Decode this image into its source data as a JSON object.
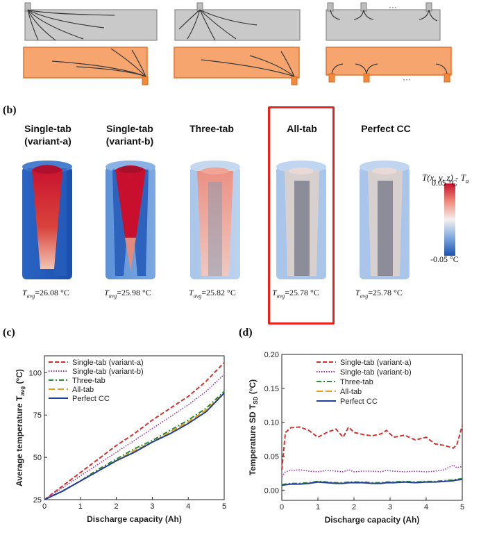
{
  "panel_b": {
    "letter": "(b)",
    "cells": [
      {
        "label_line1": "Single-tab",
        "label_line2": "(variant-a)",
        "tavg": "=26.08 °C",
        "pattern": "red"
      },
      {
        "label_line1": "Single-tab",
        "label_line2": "(variant-b)",
        "tavg": "=25.98 °C",
        "pattern": "wedge"
      },
      {
        "label_line1": "Three-tab",
        "label_line2": "",
        "tavg": "=25.82 °C",
        "pattern": "light-red"
      },
      {
        "label_line1": "All-tab",
        "label_line2": "",
        "tavg": "=25.78 °C",
        "pattern": "uniform"
      },
      {
        "label_line1": "Perfect CC",
        "label_line2": "",
        "tavg": "=25.78 °C",
        "pattern": "uniform"
      }
    ],
    "tavg_symbol": "T",
    "tavg_sub": "avg",
    "colorbar_title": "T(x, y, z) - T",
    "colorbar_title_sub": "a",
    "colorbar_max": "0.05 °C",
    "colorbar_min": "-0.05 °C",
    "highlight_color": "#e8231c"
  },
  "panel_c": {
    "letter": "(c)"
  },
  "panel_d": {
    "letter": "(d)"
  },
  "chart_data": [
    {
      "type": "line",
      "ylabel": "Average temperature T",
      "ylabel_sub": "avg",
      "ylabel_unit": " (°C)",
      "xlabel": "Discharge capacity (Ah)",
      "xlim": [
        0,
        5
      ],
      "ylim": [
        25,
        110
      ],
      "xticks": [
        0,
        1,
        2,
        3,
        4,
        5
      ],
      "yticks": [
        25,
        50,
        75,
        100
      ],
      "legend_position": "top-left",
      "x": [
        0,
        0.5,
        1,
        1.5,
        2,
        2.5,
        3,
        3.5,
        4,
        4.5,
        5
      ],
      "series": [
        {
          "name": "Single-tab (variant-a)",
          "color": "#d0312d",
          "dash": "dash",
          "values": [
            25,
            33,
            41,
            49,
            57,
            64,
            72,
            79,
            86,
            95,
            106
          ]
        },
        {
          "name": "Single-tab (variant-b)",
          "color": "#9b30a8",
          "dash": "dot",
          "values": [
            25,
            32,
            39,
            46,
            53,
            60,
            67,
            74,
            81,
            89,
            99
          ]
        },
        {
          "name": "Three-tab",
          "color": "#2e8b3a",
          "dash": "dashdot",
          "values": [
            25,
            30,
            36,
            43,
            49,
            55,
            60,
            66,
            72,
            79,
            89
          ]
        },
        {
          "name": "All-tab",
          "color": "#e6a11c",
          "dash": "longdash",
          "values": [
            25,
            30,
            36,
            42,
            48,
            54,
            59,
            65,
            71,
            78,
            88
          ]
        },
        {
          "name": "Perfect CC",
          "color": "#1f3f9c",
          "dash": "solid",
          "values": [
            25,
            30,
            36,
            42,
            48,
            53,
            59,
            64,
            70,
            77,
            88
          ]
        }
      ]
    },
    {
      "type": "line",
      "ylabel": "Temperature SD T",
      "ylabel_sub": "SD",
      "ylabel_unit": " (°C)",
      "xlabel": "Discharge capacity (Ah)",
      "xlim": [
        0,
        5
      ],
      "ylim": [
        -0.015,
        0.2
      ],
      "xticks": [
        0,
        1,
        2,
        3,
        4,
        5
      ],
      "yticks": [
        0.0,
        0.05,
        0.1,
        0.15,
        0.2
      ],
      "ytick_labels": [
        "0.00",
        "0.05",
        "0.10",
        "0.15",
        "0.20"
      ],
      "legend_position": "top-center",
      "x": [
        0,
        0.1,
        0.25,
        0.5,
        0.75,
        1,
        1.25,
        1.5,
        1.7,
        1.85,
        2,
        2.25,
        2.5,
        2.75,
        2.9,
        3.1,
        3.4,
        3.7,
        4,
        4.25,
        4.5,
        4.75,
        4.85,
        5
      ],
      "series": [
        {
          "name": "Single-tab (variant-a)",
          "color": "#d0312d",
          "dash": "dash",
          "values": [
            0.03,
            0.085,
            0.092,
            0.093,
            0.088,
            0.078,
            0.085,
            0.09,
            0.078,
            0.093,
            0.085,
            0.082,
            0.08,
            0.083,
            0.088,
            0.078,
            0.081,
            0.074,
            0.078,
            0.068,
            0.066,
            0.062,
            0.067,
            0.095
          ]
        },
        {
          "name": "Single-tab (variant-b)",
          "color": "#9b30a8",
          "dash": "dot",
          "values": [
            0.02,
            0.027,
            0.029,
            0.03,
            0.028,
            0.027,
            0.029,
            0.028,
            0.027,
            0.03,
            0.027,
            0.028,
            0.028,
            0.027,
            0.029,
            0.028,
            0.027,
            0.028,
            0.027,
            0.028,
            0.03,
            0.037,
            0.033,
            0.035
          ]
        },
        {
          "name": "Three-tab",
          "color": "#2e8b3a",
          "dash": "dashdot",
          "values": [
            0.008,
            0.009,
            0.01,
            0.01,
            0.011,
            0.013,
            0.012,
            0.011,
            0.011,
            0.012,
            0.012,
            0.012,
            0.011,
            0.011,
            0.012,
            0.012,
            0.013,
            0.012,
            0.013,
            0.013,
            0.014,
            0.015,
            0.016,
            0.017
          ]
        },
        {
          "name": "All-tab",
          "color": "#e6a11c",
          "dash": "longdash",
          "values": [
            0.007,
            0.008,
            0.009,
            0.009,
            0.01,
            0.012,
            0.011,
            0.01,
            0.01,
            0.011,
            0.011,
            0.011,
            0.01,
            0.01,
            0.011,
            0.011,
            0.012,
            0.011,
            0.012,
            0.012,
            0.013,
            0.014,
            0.015,
            0.016
          ]
        },
        {
          "name": "Perfect CC",
          "color": "#1f3f9c",
          "dash": "solid",
          "values": [
            0.007,
            0.008,
            0.009,
            0.009,
            0.01,
            0.012,
            0.011,
            0.01,
            0.01,
            0.011,
            0.011,
            0.011,
            0.01,
            0.01,
            0.011,
            0.011,
            0.012,
            0.011,
            0.012,
            0.012,
            0.013,
            0.014,
            0.015,
            0.016
          ]
        }
      ]
    }
  ]
}
